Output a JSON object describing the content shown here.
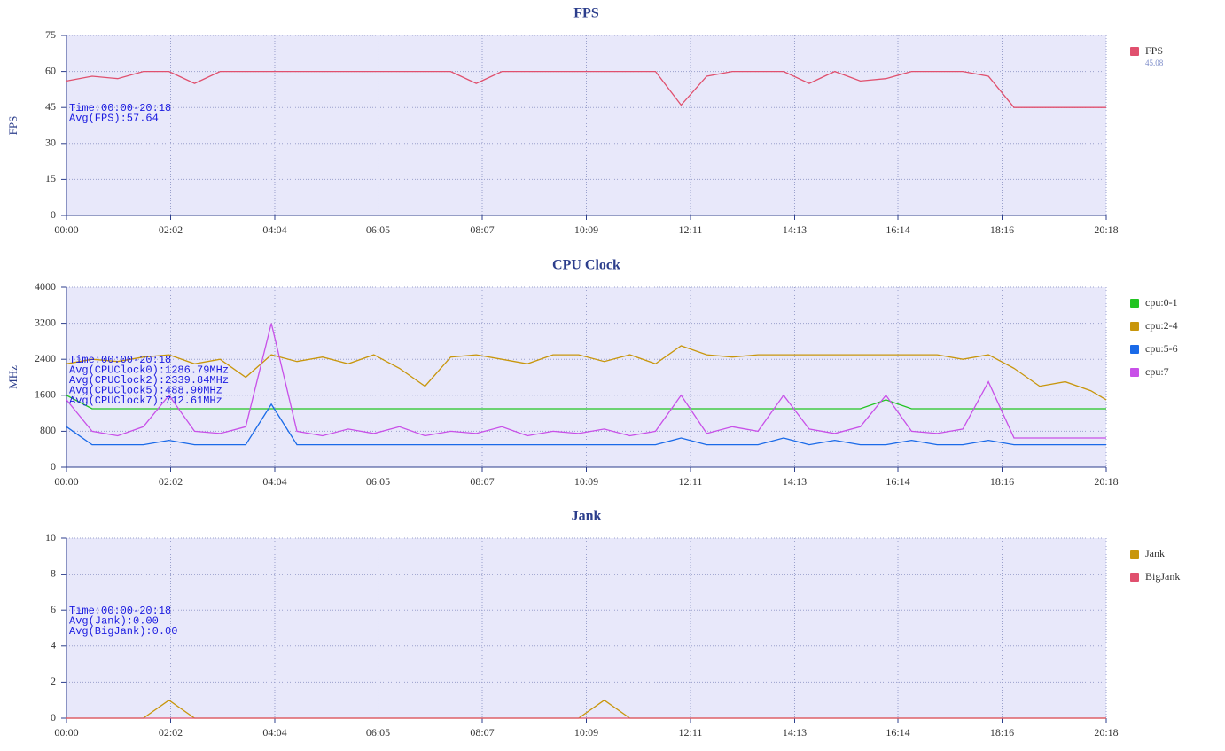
{
  "chart_data": [
    {
      "type": "line",
      "title": "FPS",
      "y_label": "FPS",
      "x": [
        0,
        30,
        60,
        90,
        120,
        150,
        180,
        210,
        240,
        270,
        300,
        330,
        360,
        390,
        420,
        450,
        480,
        510,
        540,
        570,
        600,
        630,
        660,
        690,
        720,
        750,
        780,
        810,
        840,
        870,
        900,
        930,
        960,
        990,
        1020,
        1050,
        1080,
        1110,
        1140,
        1170,
        1200,
        1218
      ],
      "xlim": [
        0,
        1218
      ],
      "xticks": [
        {
          "value": 0,
          "label": "00:00"
        },
        {
          "value": 122,
          "label": "02:02"
        },
        {
          "value": 244,
          "label": "04:04"
        },
        {
          "value": 365,
          "label": "06:05"
        },
        {
          "value": 487,
          "label": "08:07"
        },
        {
          "value": 609,
          "label": "10:09"
        },
        {
          "value": 731,
          "label": "12:11"
        },
        {
          "value": 853,
          "label": "14:13"
        },
        {
          "value": 974,
          "label": "16:14"
        },
        {
          "value": 1096,
          "label": "18:16"
        },
        {
          "value": 1218,
          "label": "20:18"
        }
      ],
      "ylim": [
        0,
        75
      ],
      "yticks": [
        0,
        15,
        30,
        45,
        60,
        75
      ],
      "grid": true,
      "legend": "right",
      "series": [
        {
          "name": "FPS",
          "color": "#e0506e",
          "legend_value": 45.08,
          "values": [
            56,
            58,
            57,
            60,
            60,
            55,
            60,
            60,
            60,
            60,
            60,
            60,
            60,
            60,
            60,
            60,
            55,
            60,
            60,
            60,
            60,
            60,
            60,
            60,
            46,
            58,
            60,
            60,
            60,
            55,
            60,
            56,
            57,
            60,
            60,
            60,
            58,
            45,
            45,
            45,
            45,
            45
          ]
        }
      ],
      "annotations": [
        "Time:00:00-20:18",
        "Avg(FPS):57.64"
      ]
    },
    {
      "type": "line",
      "title": "CPU Clock",
      "y_label": "MHz",
      "x": [
        0,
        30,
        60,
        90,
        120,
        150,
        180,
        210,
        240,
        270,
        300,
        330,
        360,
        390,
        420,
        450,
        480,
        510,
        540,
        570,
        600,
        630,
        660,
        690,
        720,
        750,
        780,
        810,
        840,
        870,
        900,
        930,
        960,
        990,
        1020,
        1050,
        1080,
        1110,
        1140,
        1170,
        1200,
        1218
      ],
      "xlim": [
        0,
        1218
      ],
      "xticks": [
        {
          "value": 0,
          "label": "00:00"
        },
        {
          "value": 122,
          "label": "02:02"
        },
        {
          "value": 244,
          "label": "04:04"
        },
        {
          "value": 365,
          "label": "06:05"
        },
        {
          "value": 487,
          "label": "08:07"
        },
        {
          "value": 609,
          "label": "10:09"
        },
        {
          "value": 731,
          "label": "12:11"
        },
        {
          "value": 853,
          "label": "14:13"
        },
        {
          "value": 974,
          "label": "16:14"
        },
        {
          "value": 1096,
          "label": "18:16"
        },
        {
          "value": 1218,
          "label": "20:18"
        }
      ],
      "ylim": [
        0,
        4000
      ],
      "yticks": [
        0,
        800,
        1600,
        2400,
        3200,
        4000
      ],
      "grid": true,
      "legend": "right",
      "series": [
        {
          "name": "cpu:0-1",
          "color": "#22c422",
          "values": [
            1600,
            1300,
            1300,
            1300,
            1300,
            1300,
            1300,
            1300,
            1300,
            1300,
            1300,
            1300,
            1300,
            1300,
            1300,
            1300,
            1300,
            1300,
            1300,
            1300,
            1300,
            1300,
            1300,
            1300,
            1300,
            1300,
            1300,
            1300,
            1300,
            1300,
            1300,
            1300,
            1500,
            1300,
            1300,
            1300,
            1300,
            1300,
            1300,
            1300,
            1300,
            1300
          ]
        },
        {
          "name": "cpu:2-4",
          "color": "#c8960c",
          "values": [
            2300,
            2400,
            2350,
            2450,
            2500,
            2300,
            2400,
            2000,
            2500,
            2350,
            2450,
            2300,
            2500,
            2200,
            1800,
            2450,
            2500,
            2400,
            2300,
            2500,
            2500,
            2350,
            2500,
            2300,
            2700,
            2500,
            2450,
            2500,
            2500,
            2500,
            2500,
            2500,
            2500,
            2500,
            2500,
            2400,
            2500,
            2200,
            1800,
            1900,
            1700,
            1500
          ]
        },
        {
          "name": "cpu:5-6",
          "color": "#1a6ae8",
          "values": [
            900,
            500,
            500,
            500,
            600,
            500,
            500,
            500,
            1400,
            500,
            500,
            500,
            500,
            500,
            500,
            500,
            500,
            500,
            500,
            500,
            500,
            500,
            500,
            500,
            650,
            500,
            500,
            500,
            650,
            500,
            600,
            500,
            500,
            600,
            500,
            500,
            600,
            500,
            500,
            500,
            500,
            500
          ]
        },
        {
          "name": "cpu:7",
          "color": "#c850e8",
          "values": [
            1500,
            800,
            700,
            900,
            1600,
            800,
            750,
            900,
            3200,
            800,
            700,
            850,
            750,
            900,
            700,
            800,
            750,
            900,
            700,
            800,
            750,
            850,
            700,
            800,
            1600,
            750,
            900,
            800,
            1600,
            850,
            750,
            900,
            1600,
            800,
            750,
            850,
            1900,
            650,
            650,
            650,
            650,
            650
          ]
        }
      ],
      "annotations": [
        "Time:00:00-20:18",
        "Avg(CPUClock0):1286.79MHz",
        "Avg(CPUClock2):2339.84MHz",
        "Avg(CPUClock5):488.90MHz",
        "Avg(CPUClock7):712.61MHz"
      ]
    },
    {
      "type": "line",
      "title": "Jank",
      "x": [
        0,
        30,
        60,
        90,
        120,
        150,
        180,
        210,
        240,
        270,
        300,
        330,
        360,
        390,
        420,
        450,
        480,
        510,
        540,
        570,
        600,
        630,
        660,
        690,
        720,
        750,
        780,
        810,
        840,
        870,
        900,
        930,
        960,
        990,
        1020,
        1050,
        1080,
        1110,
        1140,
        1170,
        1200,
        1218
      ],
      "xlim": [
        0,
        1218
      ],
      "xticks": [
        {
          "value": 0,
          "label": "00:00"
        },
        {
          "value": 122,
          "label": "02:02"
        },
        {
          "value": 244,
          "label": "04:04"
        },
        {
          "value": 365,
          "label": "06:05"
        },
        {
          "value": 487,
          "label": "08:07"
        },
        {
          "value": 609,
          "label": "10:09"
        },
        {
          "value": 731,
          "label": "12:11"
        },
        {
          "value": 853,
          "label": "14:13"
        },
        {
          "value": 974,
          "label": "16:14"
        },
        {
          "value": 1096,
          "label": "18:16"
        },
        {
          "value": 1218,
          "label": "20:18"
        }
      ],
      "ylim": [
        0,
        10
      ],
      "yticks": [
        0,
        2,
        4,
        6,
        8,
        10
      ],
      "grid": true,
      "legend": "right",
      "series": [
        {
          "name": "Jank",
          "color": "#c8960c",
          "values": [
            0,
            0,
            0,
            0,
            1,
            0,
            0,
            0,
            0,
            0,
            0,
            0,
            0,
            0,
            0,
            0,
            0,
            0,
            0,
            0,
            0,
            1,
            0,
            0,
            0,
            0,
            0,
            0,
            0,
            0,
            0,
            0,
            0,
            0,
            0,
            0,
            0,
            0,
            0,
            0,
            0,
            0
          ]
        },
        {
          "name": "BigJank",
          "color": "#e0506e",
          "values": [
            0,
            0,
            0,
            0,
            0,
            0,
            0,
            0,
            0,
            0,
            0,
            0,
            0,
            0,
            0,
            0,
            0,
            0,
            0,
            0,
            0,
            0,
            0,
            0,
            0,
            0,
            0,
            0,
            0,
            0,
            0,
            0,
            0,
            0,
            0,
            0,
            0,
            0,
            0,
            0,
            0,
            0
          ]
        }
      ],
      "annotations": [
        "Time:00:00-20:18",
        "Avg(Jank):0.00",
        "Avg(BigJank):0.00"
      ]
    }
  ]
}
